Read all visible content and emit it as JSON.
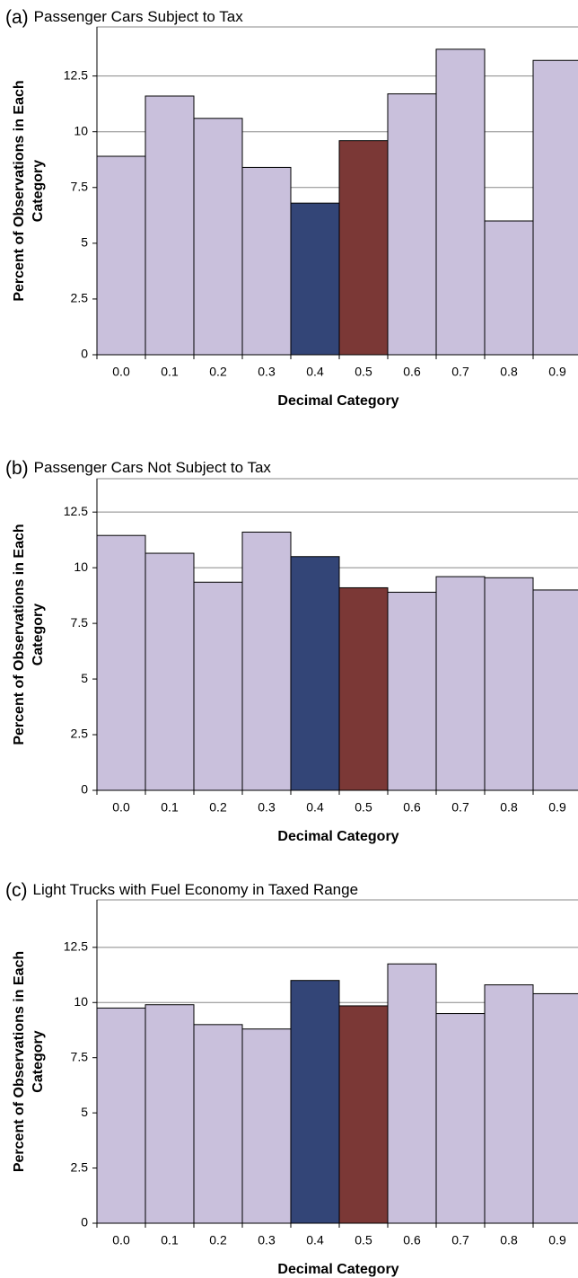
{
  "chart_data": [
    {
      "type": "bar",
      "label": "(a)",
      "title": "Passenger Cars Subject to Tax",
      "ylabel": [
        "Percent of Observations in Each",
        "Category"
      ],
      "xlabel": "Decimal Category",
      "categories": [
        "0.0",
        "0.1",
        "0.2",
        "0.3",
        "0.4",
        "0.5",
        "0.6",
        "0.7",
        "0.8",
        "0.9"
      ],
      "values": [
        8.9,
        11.6,
        10.6,
        8.4,
        6.8,
        9.6,
        11.7,
        13.7,
        6.0,
        13.2
      ],
      "colors": [
        "#c9c0dc",
        "#c9c0dc",
        "#c9c0dc",
        "#c9c0dc",
        "#334577",
        "#7b3836",
        "#c9c0dc",
        "#c9c0dc",
        "#c9c0dc",
        "#c9c0dc"
      ],
      "ylim": [
        0,
        14.7
      ],
      "yticks": [
        0,
        2.5,
        5,
        7.5,
        10,
        12.5
      ],
      "grid": true
    },
    {
      "type": "bar",
      "label": "(b)",
      "title": "Passenger Cars Not Subject to Tax",
      "ylabel": [
        "Percent of Observations in Each",
        "Category"
      ],
      "xlabel": "Decimal Category",
      "categories": [
        "0.0",
        "0.1",
        "0.2",
        "0.3",
        "0.4",
        "0.5",
        "0.6",
        "0.7",
        "0.8",
        "0.9"
      ],
      "values": [
        11.45,
        10.65,
        9.35,
        11.6,
        10.5,
        9.1,
        8.9,
        9.6,
        9.55,
        9.0
      ],
      "colors": [
        "#c9c0dc",
        "#c9c0dc",
        "#c9c0dc",
        "#c9c0dc",
        "#334577",
        "#7b3836",
        "#c9c0dc",
        "#c9c0dc",
        "#c9c0dc",
        "#c9c0dc"
      ],
      "ylim": [
        0,
        14
      ],
      "yticks": [
        0,
        2.5,
        5,
        7.5,
        10,
        12.5
      ],
      "grid": true
    },
    {
      "type": "bar",
      "label": "(c)",
      "title": "Light Trucks with Fuel Economy in Taxed Range",
      "ylabel": [
        "Percent of Observations in Each",
        "Category"
      ],
      "xlabel": "Decimal Category",
      "categories": [
        "0.0",
        "0.1",
        "0.2",
        "0.3",
        "0.4",
        "0.5",
        "0.6",
        "0.7",
        "0.8",
        "0.9"
      ],
      "values": [
        9.75,
        9.9,
        9.0,
        8.8,
        11.0,
        9.85,
        11.75,
        9.5,
        10.8,
        10.4
      ],
      "colors": [
        "#c9c0dc",
        "#c9c0dc",
        "#c9c0dc",
        "#c9c0dc",
        "#334577",
        "#7b3836",
        "#c9c0dc",
        "#c9c0dc",
        "#c9c0dc",
        "#c9c0dc"
      ],
      "ylim": [
        0,
        14.65
      ],
      "yticks": [
        0,
        2.5,
        5,
        7.5,
        10,
        12.5
      ],
      "grid": true
    }
  ]
}
